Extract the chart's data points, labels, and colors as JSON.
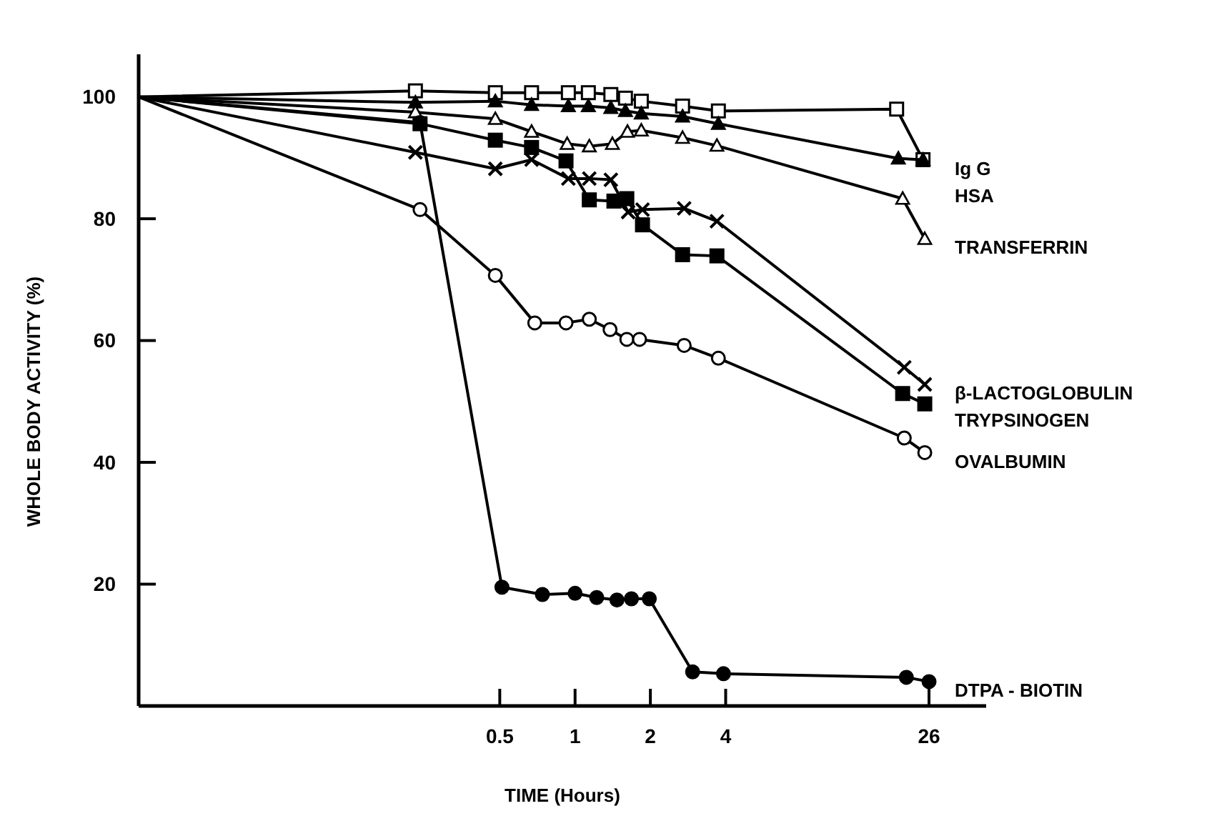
{
  "chart_data": {
    "type": "line",
    "xlabel": "TIME (Hours)",
    "ylabel": "WHOLE BODY ACTIVITY (%)",
    "log": "x",
    "xlim": [
      0.018,
      44
    ],
    "xticks": [
      0.5,
      1,
      2,
      4,
      26
    ],
    "ylim": [
      0,
      107
    ],
    "yticks": [
      20,
      40,
      60,
      80,
      100
    ],
    "line_style": "solid",
    "series": [
      {
        "name": "Ig G",
        "color": "#000000",
        "marker": "square",
        "x": [
          0.018,
          0.23,
          0.48,
          0.67,
          0.94,
          1.13,
          1.39,
          1.59,
          1.84,
          2.69,
          3.74,
          19.3,
          24.6
        ],
        "values": [
          100,
          101,
          100.7,
          100.7,
          100.7,
          100.7,
          100.4,
          99.8,
          99.3,
          98.5,
          97.7,
          98,
          89.7
        ]
      },
      {
        "name": "HSA",
        "color": "#000000",
        "marker": "triangle",
        "x": [
          0.018,
          0.23,
          0.48,
          0.67,
          0.94,
          1.13,
          1.39,
          1.59,
          1.84,
          2.69,
          3.74,
          19.6,
          24.6
        ],
        "values": [
          100,
          99.1,
          99.3,
          98.7,
          98.5,
          98.5,
          98.2,
          97.7,
          97.3,
          96.8,
          95.6,
          89.9,
          89.7
        ]
      },
      {
        "name": "TRANSFERRIN",
        "color": "#000000",
        "marker": "triangle",
        "x": [
          0.018,
          0.23,
          0.48,
          0.67,
          0.93,
          1.14,
          1.41,
          1.62,
          1.84,
          2.69,
          3.69,
          20.4,
          25
        ],
        "values": [
          100,
          97.5,
          96.4,
          94.3,
          92.3,
          91.9,
          92.3,
          94.3,
          94.5,
          93.3,
          92,
          83.3,
          76.7
        ]
      },
      {
        "name": "β-LACTOGLOBULIN",
        "color": "#000000",
        "marker": "cross",
        "x": [
          0.018,
          0.23,
          0.48,
          0.67,
          0.94,
          1.14,
          1.39,
          1.63,
          1.86,
          2.73,
          3.69,
          20.7,
          25
        ],
        "values": [
          100,
          90.9,
          88.2,
          89.7,
          86.6,
          86.6,
          86.4,
          81.1,
          81.5,
          81.7,
          79.6,
          55.6,
          52.8
        ]
      },
      {
        "name": "TRYPSINOGEN",
        "color": "#000000",
        "marker": "square",
        "x": [
          0.018,
          0.24,
          0.48,
          0.67,
          0.92,
          1.14,
          1.43,
          1.61,
          1.86,
          2.69,
          3.69,
          20.4,
          25
        ],
        "values": [
          100,
          95.6,
          92.9,
          91.7,
          89.5,
          83.1,
          82.9,
          83.3,
          79,
          74.1,
          73.9,
          51.3,
          49.6
        ]
      },
      {
        "name": "OVALBUMIN",
        "color": "#000000",
        "marker": "circle",
        "x": [
          0.018,
          0.24,
          0.48,
          0.69,
          0.92,
          1.14,
          1.38,
          1.61,
          1.81,
          2.73,
          3.74,
          20.7,
          25
        ],
        "values": [
          100,
          81.5,
          70.7,
          62.9,
          62.9,
          63.5,
          61.8,
          60.2,
          60.2,
          59.2,
          57.1,
          44,
          41.6
        ]
      },
      {
        "name": "DTPA - BIOTIN",
        "color": "#000000",
        "marker": "circle",
        "x": [
          0.018,
          0.24,
          0.51,
          0.74,
          1,
          1.22,
          1.47,
          1.68,
          1.98,
          2.95,
          3.92,
          21.1,
          26
        ],
        "values": [
          100,
          95.8,
          19.5,
          18.3,
          18.5,
          17.8,
          17.4,
          17.6,
          17.6,
          5.6,
          5.3,
          4.7,
          4
        ]
      }
    ]
  }
}
